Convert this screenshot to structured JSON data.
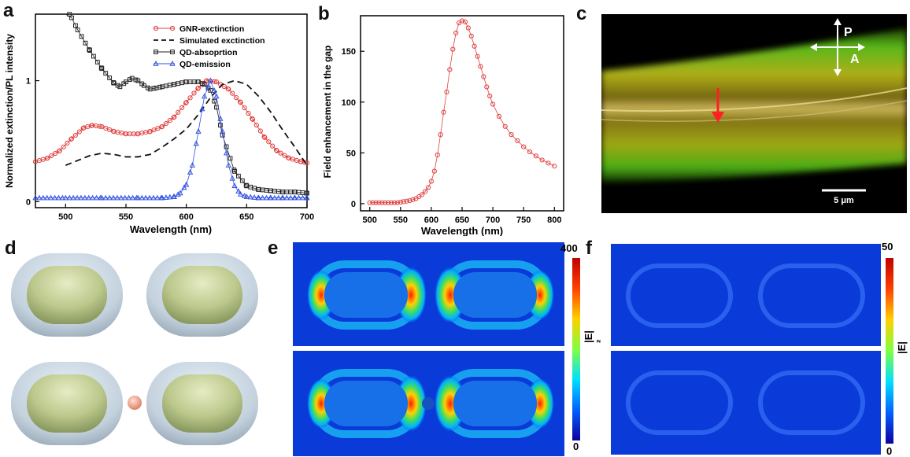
{
  "panels": {
    "a": "a",
    "b": "b",
    "c": "c",
    "d": "d",
    "e": "e",
    "f": "f"
  },
  "chart_data": [
    {
      "type": "line",
      "xlabel": "Wavelength (nm)",
      "ylabel": "Normalized extinction/PL intensity",
      "xlim": [
        475,
        700
      ],
      "ylim": [
        -0.05,
        1.55
      ],
      "xticks": [
        500,
        550,
        600,
        650,
        700
      ],
      "yticks": [
        0,
        1
      ],
      "legend_position": "top-right",
      "series": [
        {
          "name": "GNR-exctinction",
          "color": "#e04040",
          "marker": "circle",
          "x": [
            475,
            485,
            495,
            505,
            515,
            522,
            530,
            540,
            550,
            560,
            570,
            580,
            590,
            600,
            610,
            617,
            625,
            635,
            645,
            655,
            665,
            675,
            685,
            695,
            700
          ],
          "y": [
            0.33,
            0.36,
            0.42,
            0.52,
            0.61,
            0.63,
            0.62,
            0.58,
            0.56,
            0.56,
            0.58,
            0.62,
            0.7,
            0.82,
            0.94,
            1.0,
            0.99,
            0.93,
            0.82,
            0.68,
            0.53,
            0.42,
            0.36,
            0.33,
            0.32
          ]
        },
        {
          "name": "Simulated exctinction",
          "color": "#111111",
          "marker": "dash",
          "x": [
            500,
            510,
            520,
            530,
            540,
            550,
            560,
            570,
            580,
            590,
            600,
            610,
            620,
            630,
            640,
            650,
            660,
            670,
            680,
            690,
            700
          ],
          "y": [
            0.3,
            0.34,
            0.38,
            0.4,
            0.39,
            0.37,
            0.37,
            0.39,
            0.45,
            0.52,
            0.6,
            0.72,
            0.86,
            0.97,
            1.0,
            0.97,
            0.87,
            0.74,
            0.59,
            0.45,
            0.3
          ]
        },
        {
          "name": "QD-absoprtion",
          "color": "#222222",
          "marker": "square",
          "x": [
            500,
            505,
            510,
            520,
            530,
            540,
            545,
            550,
            555,
            560,
            565,
            570,
            575,
            580,
            590,
            600,
            610,
            615,
            620,
            625,
            630,
            640,
            650,
            660,
            670,
            680,
            690,
            700
          ],
          "y": [
            1.6,
            1.52,
            1.42,
            1.25,
            1.1,
            0.98,
            0.95,
            0.99,
            1.02,
            1.0,
            0.96,
            0.93,
            0.94,
            0.95,
            0.97,
            0.99,
            0.99,
            0.97,
            0.92,
            0.78,
            0.55,
            0.25,
            0.13,
            0.1,
            0.09,
            0.08,
            0.08,
            0.07
          ]
        },
        {
          "name": "QD-emission",
          "color": "#3050e0",
          "marker": "triangle",
          "x": [
            475,
            500,
            530,
            560,
            580,
            590,
            595,
            600,
            605,
            610,
            615,
            620,
            625,
            630,
            635,
            640,
            645,
            650,
            660,
            670,
            680,
            690,
            700
          ],
          "y": [
            0.03,
            0.03,
            0.03,
            0.03,
            0.03,
            0.04,
            0.07,
            0.14,
            0.3,
            0.58,
            0.87,
            1.0,
            0.87,
            0.58,
            0.3,
            0.13,
            0.06,
            0.04,
            0.03,
            0.03,
            0.03,
            0.03,
            0.03
          ]
        }
      ]
    },
    {
      "type": "line",
      "xlabel": "Wavelength (nm)",
      "ylabel": "Field enhancement in the gap",
      "xlim": [
        485,
        815
      ],
      "ylim": [
        -7,
        185
      ],
      "xticks": [
        500,
        550,
        600,
        650,
        700,
        750,
        800
      ],
      "yticks": [
        0,
        50,
        100,
        150
      ],
      "series": [
        {
          "name": "",
          "color": "#e04040",
          "marker": "circle",
          "x": [
            500,
            505,
            510,
            515,
            520,
            525,
            530,
            535,
            540,
            545,
            550,
            555,
            560,
            565,
            570,
            575,
            580,
            585,
            590,
            595,
            600,
            605,
            610,
            615,
            620,
            625,
            630,
            635,
            640,
            645,
            650,
            655,
            660,
            665,
            670,
            675,
            680,
            685,
            690,
            695,
            700,
            710,
            720,
            730,
            740,
            750,
            760,
            770,
            780,
            790,
            800
          ],
          "y": [
            1,
            1,
            1,
            1,
            1,
            1,
            1,
            1,
            1,
            1,
            1.5,
            2,
            2.5,
            3,
            4,
            5,
            7,
            9,
            12,
            16,
            22,
            32,
            48,
            68,
            90,
            110,
            132,
            152,
            168,
            178,
            180,
            179,
            173,
            165,
            155,
            145,
            135,
            125,
            115,
            106,
            98,
            86,
            76,
            68,
            62,
            56,
            51,
            47,
            43,
            40,
            37
          ]
        }
      ]
    }
  ],
  "micrograph": {
    "axis_p": "P",
    "axis_a": "A",
    "scale_bar": "5 μm"
  },
  "colorbar_e": {
    "max": "400",
    "min": "0",
    "label": "|E|²"
  },
  "colorbar_f": {
    "max": "50",
    "min": "0",
    "label": "|E|²"
  }
}
